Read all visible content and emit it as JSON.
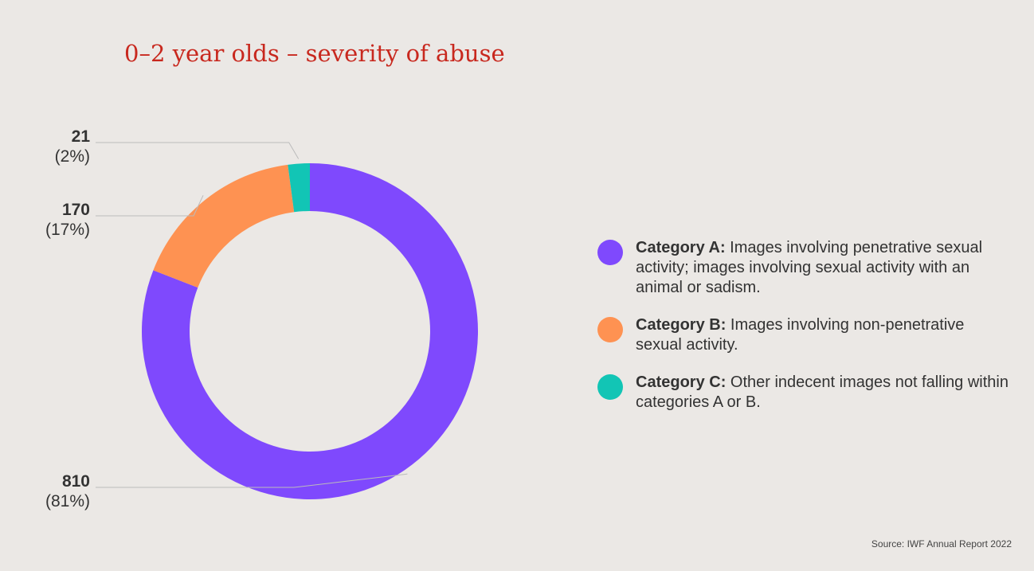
{
  "chart_data": {
    "type": "pie",
    "style": "donut",
    "title": "0–2 year olds – severity of abuse",
    "series": [
      {
        "name": "Category A",
        "value": 810,
        "percent_label": "(81%)",
        "value_label": "810",
        "color": "#7f49fd",
        "legend_bold": "Category A:",
        "legend_text": " Images involving penetrative sexual activity; images involving sexual activity with an animal or sadism."
      },
      {
        "name": "Category B",
        "value": 170,
        "percent_label": "(17%)",
        "value_label": "170",
        "color": "#fe9252",
        "legend_bold": "Category B:",
        "legend_text": " Images involving non-penetrative sexual activity."
      },
      {
        "name": "Category C",
        "value": 21,
        "percent_label": "(2%)",
        "value_label": "21",
        "color": "#12c5b5",
        "legend_bold": "Category C:",
        "legend_text": " Other indecent images not falling within categories A or B."
      }
    ],
    "start_angle": "12 o'clock",
    "direction": "clockwise",
    "legend_position": "right"
  },
  "source": "Source: IWF Annual Report 2022",
  "colors": {
    "background": "#ebe8e5",
    "title": "#c8281e",
    "text": "#333333",
    "leader_line": "#bbbbbb"
  }
}
